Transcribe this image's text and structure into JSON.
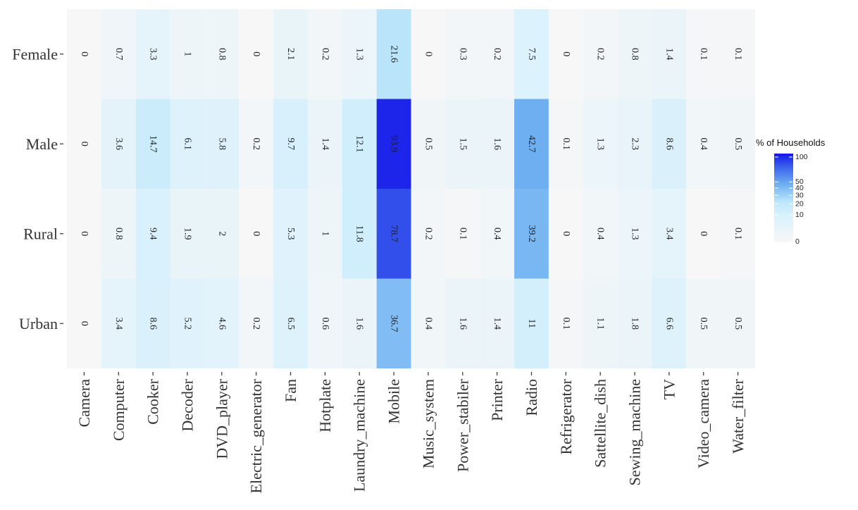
{
  "chart_data": {
    "type": "heatmap",
    "title": "",
    "xlabel": "",
    "ylabel": "",
    "x": [
      "Camera",
      "Computer",
      "Cooker",
      "Decoder",
      "DVD_player",
      "Electric_generator",
      "Fan",
      "Hotplate",
      "Laundry_machine",
      "Mobile",
      "Music_system",
      "Power_stabiler",
      "Printer",
      "Radio",
      "Refrigerator",
      "Sattellite_dish",
      "Sewing_machine",
      "TV",
      "Video_camera",
      "Water_filter"
    ],
    "y": [
      "Female",
      "Male",
      "Rural",
      "Urban"
    ],
    "values": [
      [
        0,
        0.7,
        3.3,
        1,
        0.8,
        0,
        2.1,
        0.2,
        1.3,
        21.6,
        0,
        0.3,
        0.2,
        7.5,
        0,
        0.2,
        0.8,
        1.4,
        0.1,
        0.1
      ],
      [
        0,
        3.6,
        14.7,
        6.1,
        5.8,
        0.2,
        9.7,
        1.4,
        12.1,
        93.9,
        0.5,
        1.5,
        1.6,
        42.7,
        0.1,
        1.3,
        2.3,
        8.6,
        0.4,
        0.5
      ],
      [
        0,
        0.8,
        9.4,
        1.9,
        2,
        0,
        5.3,
        1,
        11.8,
        78.7,
        0.2,
        0.1,
        0.4,
        39.2,
        0,
        0.4,
        1.3,
        3.4,
        0,
        0.1
      ],
      [
        0,
        3.4,
        8.6,
        5.2,
        4.6,
        0.2,
        6.5,
        0.6,
        1.6,
        36.7,
        0.4,
        1.6,
        1.4,
        11,
        0.1,
        1.1,
        1.8,
        6.6,
        0.5,
        0.5
      ]
    ],
    "legend": {
      "title": "% of Households",
      "ticks": [
        0,
        10,
        20,
        30,
        40,
        50,
        100
      ],
      "placement": "right"
    },
    "scale": "sqrt",
    "colors": {
      "low": "#f7f7f7",
      "mid": "#bfe8fb",
      "high": "#1515ea"
    },
    "grid": true
  }
}
